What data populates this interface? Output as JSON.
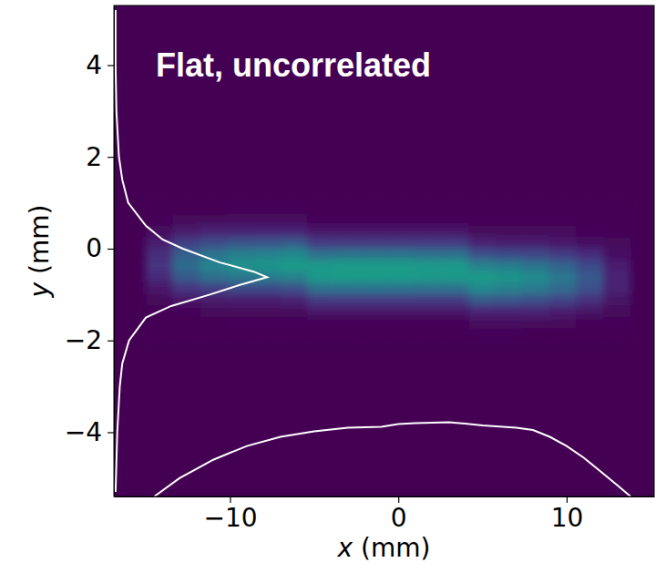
{
  "chart_data": {
    "type": "heatmap",
    "title": "Flat, uncorrelated",
    "x_label": "x (mm)",
    "y_label": "y (mm)",
    "xlim": [
      -16.9,
      15.2
    ],
    "ylim": [
      -5.4,
      5.3
    ],
    "xticks": [
      {
        "value": -10,
        "label": "−10"
      },
      0,
      10
    ],
    "yticks": [
      {
        "value": -4,
        "label": "−4"
      },
      {
        "value": -2,
        "label": "−2"
      },
      0,
      2,
      4
    ],
    "grid": false,
    "heatmap": {
      "x": [
        -15,
        -13.4,
        -11.8,
        -10.2,
        -8.6,
        -7,
        -5.4,
        -3.8,
        -2.2,
        -0.6,
        1,
        2.6,
        4.2,
        5.8,
        7.4,
        9,
        10.6,
        12.2,
        13.8
      ],
      "y": [
        1,
        0.75,
        0.5,
        0.25,
        0,
        -0.25,
        -0.5,
        -0.75,
        -1,
        -1.25,
        -1.5,
        -1.75,
        -2
      ],
      "zlim": [
        0,
        1
      ],
      "z": [
        [
          0,
          0,
          0,
          0.01,
          0.01,
          0.01,
          0,
          0,
          0,
          0,
          0,
          0,
          0,
          0,
          0,
          0,
          0,
          0
        ],
        [
          0.01,
          0.02,
          0.02,
          0.03,
          0.03,
          0.03,
          0.01,
          0.01,
          0.01,
          0.01,
          0.01,
          0.01,
          0.01,
          0.01,
          0,
          0,
          0,
          0
        ],
        [
          0.03,
          0.07,
          0.09,
          0.1,
          0.1,
          0.1,
          0.06,
          0.06,
          0.06,
          0.06,
          0.06,
          0.06,
          0.02,
          0.02,
          0.02,
          0.02,
          0.01,
          0
        ],
        [
          0.08,
          0.18,
          0.23,
          0.25,
          0.26,
          0.28,
          0.17,
          0.17,
          0.17,
          0.17,
          0.17,
          0.17,
          0.09,
          0.08,
          0.08,
          0.06,
          0.04,
          0.02
        ],
        [
          0.13,
          0.3,
          0.38,
          0.43,
          0.44,
          0.47,
          0.37,
          0.38,
          0.38,
          0.38,
          0.37,
          0.37,
          0.24,
          0.22,
          0.21,
          0.17,
          0.12,
          0.04
        ],
        [
          0.15,
          0.35,
          0.45,
          0.5,
          0.52,
          0.55,
          0.54,
          0.55,
          0.55,
          0.55,
          0.54,
          0.54,
          0.44,
          0.42,
          0.38,
          0.32,
          0.22,
          0.08
        ],
        [
          0.12,
          0.28,
          0.36,
          0.4,
          0.42,
          0.44,
          0.54,
          0.55,
          0.55,
          0.55,
          0.54,
          0.54,
          0.55,
          0.52,
          0.48,
          0.4,
          0.28,
          0.1
        ],
        [
          0.06,
          0.15,
          0.19,
          0.22,
          0.22,
          0.24,
          0.37,
          0.38,
          0.38,
          0.38,
          0.37,
          0.37,
          0.47,
          0.44,
          0.41,
          0.34,
          0.24,
          0.09
        ],
        [
          0.02,
          0.06,
          0.07,
          0.08,
          0.08,
          0.09,
          0.17,
          0.17,
          0.17,
          0.17,
          0.17,
          0.17,
          0.28,
          0.26,
          0.24,
          0.2,
          0.14,
          0.05
        ],
        [
          0.01,
          0.01,
          0.02,
          0.02,
          0.02,
          0.02,
          0.06,
          0.06,
          0.06,
          0.06,
          0.06,
          0.06,
          0.1,
          0.1,
          0.09,
          0.08,
          0.05,
          0.02
        ],
        [
          0,
          0,
          0,
          0.01,
          0.01,
          0.01,
          0.01,
          0.01,
          0.01,
          0.01,
          0.01,
          0.01,
          0.03,
          0.03,
          0.02,
          0.02,
          0.01,
          0.01
        ],
        [
          0,
          0,
          0,
          0,
          0,
          0,
          0,
          0,
          0,
          0,
          0,
          0,
          0.01,
          0.01,
          0,
          0,
          0,
          0
        ]
      ]
    },
    "series": [
      {
        "type": "line",
        "color": "#ffffff",
        "x": [
          -16.8,
          -16.8,
          -16.75,
          -16.6,
          -16.4,
          -16.05,
          -15,
          -14,
          -12.8,
          -10.6,
          -8.6,
          -7.8,
          -9.5,
          -11.2,
          -13.5,
          -15,
          -16,
          -16.4,
          -16.55,
          -16.7,
          -16.8
        ],
        "values": [
          5.2,
          4,
          3,
          2,
          1.5,
          1,
          0.5,
          0.2,
          0,
          -0.3,
          -0.5,
          -0.62,
          -0.8,
          -1,
          -1.25,
          -1.5,
          -2,
          -2.5,
          -3,
          -4,
          -5.3
        ]
      },
      {
        "type": "line",
        "color": "#ffffff",
        "x": [
          -14.5,
          -13,
          -11,
          -9,
          -7,
          -5,
          -3,
          -1,
          0,
          1,
          3,
          5,
          7,
          8,
          9,
          10,
          11,
          12,
          13,
          13.8
        ],
        "values": [
          -5.4,
          -5.0,
          -4.6,
          -4.3,
          -4.1,
          -3.98,
          -3.9,
          -3.88,
          -3.82,
          -3.8,
          -3.78,
          -3.85,
          -3.9,
          -3.95,
          -4.1,
          -4.3,
          -4.55,
          -4.85,
          -5.15,
          -5.4
        ]
      }
    ]
  }
}
